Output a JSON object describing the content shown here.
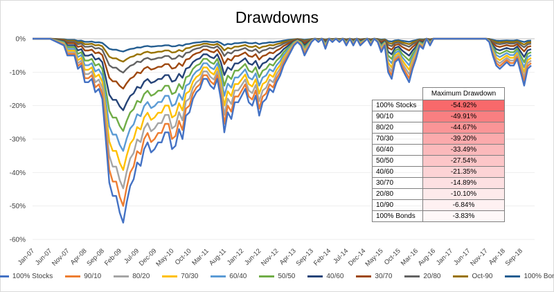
{
  "chart_data": {
    "type": "line",
    "title": "Drawdowns",
    "xlabel": "",
    "ylabel": "",
    "ylim": [
      -60,
      0
    ],
    "y_ticks": [
      "0%",
      "-10%",
      "-20%",
      "-30%",
      "-40%",
      "-50%",
      "-60%"
    ],
    "x_tick_labels": [
      "Jan-07",
      "Jun-07",
      "Nov-07",
      "Apr-08",
      "Sep-08",
      "Feb-09",
      "Jul-09",
      "Dec-09",
      "May-10",
      "Oct-10",
      "Mar-11",
      "Aug-11",
      "Jan-12",
      "Jun-12",
      "Nov-12",
      "Apr-13",
      "Sep-13",
      "Feb-14",
      "Jul-14",
      "Dec-14",
      "May-15",
      "Oct-15",
      "Mar-16",
      "Aug-16",
      "Jan-17",
      "Jun-17",
      "Nov-17",
      "Apr-18",
      "Sep-18"
    ],
    "x_tick_months": [
      0,
      5,
      10,
      15,
      20,
      25,
      30,
      35,
      40,
      45,
      50,
      55,
      60,
      65,
      70,
      75,
      80,
      85,
      90,
      95,
      100,
      105,
      110,
      115,
      120,
      125,
      130,
      135,
      140
    ],
    "x_range_months": [
      0,
      144
    ],
    "stock_drawdown_anchors": [
      [
        0,
        0
      ],
      [
        5,
        0
      ],
      [
        9,
        -2
      ],
      [
        10,
        -5
      ],
      [
        12,
        -5
      ],
      [
        13,
        -9
      ],
      [
        14,
        -8
      ],
      [
        15,
        -13
      ],
      [
        16,
        -13
      ],
      [
        17,
        -12
      ],
      [
        18,
        -16
      ],
      [
        19,
        -15
      ],
      [
        20,
        -18
      ],
      [
        21,
        -30
      ],
      [
        22,
        -43
      ],
      [
        23,
        -47
      ],
      [
        24,
        -47
      ],
      [
        25,
        -52
      ],
      [
        26,
        -55
      ],
      [
        27,
        -49
      ],
      [
        28,
        -44
      ],
      [
        29,
        -42
      ],
      [
        30,
        -37
      ],
      [
        31,
        -38
      ],
      [
        32,
        -33
      ],
      [
        33,
        -31
      ],
      [
        34,
        -34
      ],
      [
        35,
        -33
      ],
      [
        36,
        -31
      ],
      [
        37,
        -31
      ],
      [
        38,
        -28
      ],
      [
        39,
        -28
      ],
      [
        40,
        -33
      ],
      [
        41,
        -32
      ],
      [
        42,
        -27
      ],
      [
        43,
        -30
      ],
      [
        44,
        -23
      ],
      [
        45,
        -22
      ],
      [
        46,
        -18
      ],
      [
        47,
        -16
      ],
      [
        48,
        -15
      ],
      [
        49,
        -12
      ],
      [
        50,
        -12
      ],
      [
        51,
        -14
      ],
      [
        52,
        -15
      ],
      [
        53,
        -12
      ],
      [
        54,
        -18
      ],
      [
        55,
        -28
      ],
      [
        56,
        -22
      ],
      [
        57,
        -24
      ],
      [
        58,
        -19
      ],
      [
        59,
        -19
      ],
      [
        60,
        -17
      ],
      [
        61,
        -15
      ],
      [
        62,
        -19
      ],
      [
        63,
        -20
      ],
      [
        64,
        -17
      ],
      [
        65,
        -23
      ],
      [
        66,
        -19
      ],
      [
        67,
        -18
      ],
      [
        68,
        -15
      ],
      [
        69,
        -16
      ],
      [
        70,
        -13
      ],
      [
        71,
        -11
      ],
      [
        72,
        -8
      ],
      [
        73,
        -6
      ],
      [
        74,
        -4
      ],
      [
        75,
        -2
      ],
      [
        76,
        -1
      ],
      [
        77,
        -2
      ],
      [
        78,
        -5
      ],
      [
        79,
        -3
      ],
      [
        80,
        -1
      ],
      [
        81,
        0
      ],
      [
        82,
        -1
      ],
      [
        83,
        0
      ],
      [
        84,
        -3
      ],
      [
        85,
        0
      ],
      [
        86,
        -1
      ],
      [
        87,
        0
      ],
      [
        88,
        -1
      ],
      [
        89,
        0
      ],
      [
        90,
        -2
      ],
      [
        91,
        0
      ],
      [
        92,
        -2
      ],
      [
        93,
        0
      ],
      [
        94,
        -2
      ],
      [
        95,
        -1
      ],
      [
        96,
        0
      ],
      [
        97,
        -2
      ],
      [
        98,
        0
      ],
      [
        99,
        -1
      ],
      [
        100,
        -4
      ],
      [
        101,
        -2
      ],
      [
        102,
        -10
      ],
      [
        103,
        -12
      ],
      [
        104,
        -7
      ],
      [
        105,
        -6
      ],
      [
        106,
        -9
      ],
      [
        107,
        -11
      ],
      [
        108,
        -13
      ],
      [
        109,
        -9
      ],
      [
        110,
        -6
      ],
      [
        111,
        -2
      ],
      [
        112,
        -3
      ],
      [
        113,
        0
      ],
      [
        114,
        -2
      ],
      [
        115,
        0
      ],
      [
        116,
        0
      ],
      [
        117,
        0
      ],
      [
        118,
        0
      ],
      [
        119,
        0
      ],
      [
        120,
        0
      ],
      [
        121,
        0
      ],
      [
        122,
        0
      ],
      [
        123,
        0
      ],
      [
        124,
        0
      ],
      [
        125,
        0
      ],
      [
        126,
        0
      ],
      [
        127,
        0
      ],
      [
        128,
        0
      ],
      [
        129,
        0
      ],
      [
        130,
        0
      ],
      [
        131,
        -1
      ],
      [
        132,
        -5
      ],
      [
        133,
        -8
      ],
      [
        134,
        -9
      ],
      [
        135,
        -8
      ],
      [
        136,
        -7
      ],
      [
        137,
        -8
      ],
      [
        138,
        -8
      ],
      [
        139,
        -6
      ],
      [
        140,
        -10
      ],
      [
        141,
        -14
      ],
      [
        142,
        -9
      ],
      [
        143,
        -8
      ]
    ],
    "series": [
      {
        "name": "100% Stocks",
        "max_drawdown": -54.92,
        "color": "#4472c4"
      },
      {
        "name": "90/10",
        "max_drawdown": -49.91,
        "color": "#ed7d31"
      },
      {
        "name": "80/20",
        "max_drawdown": -44.67,
        "color": "#a5a5a5"
      },
      {
        "name": "70/30",
        "max_drawdown": -39.2,
        "color": "#ffc000"
      },
      {
        "name": "60/40",
        "max_drawdown": -33.49,
        "color": "#5b9bd5"
      },
      {
        "name": "50/50",
        "max_drawdown": -27.54,
        "color": "#70ad47"
      },
      {
        "name": "40/60",
        "max_drawdown": -21.35,
        "color": "#264478"
      },
      {
        "name": "30/70",
        "max_drawdown": -14.89,
        "color": "#9e480e"
      },
      {
        "name": "20/80",
        "max_drawdown": -10.1,
        "color": "#636363"
      },
      {
        "name": "Oct-90",
        "max_drawdown": -6.84,
        "color": "#997300"
      },
      {
        "name": "100% Bonds",
        "max_drawdown": -3.83,
        "color": "#255e91"
      }
    ]
  },
  "table": {
    "header": "Maximum Drawdown",
    "rows": [
      {
        "label": "100% Stocks",
        "value": "-54.92%",
        "bg": "#f8696b"
      },
      {
        "label": "90/10",
        "value": "-49.91%",
        "bg": "#f97f81"
      },
      {
        "label": "80/20",
        "value": "-44.67%",
        "bg": "#fa9597"
      },
      {
        "label": "70/30",
        "value": "-39.20%",
        "bg": "#fbaaac"
      },
      {
        "label": "60/40",
        "value": "-33.49%",
        "bg": "#fbb9bb"
      },
      {
        "label": "50/50",
        "value": "-27.54%",
        "bg": "#fcc6c8"
      },
      {
        "label": "40/60",
        "value": "-21.35%",
        "bg": "#fcd3d5"
      },
      {
        "label": "30/70",
        "value": "-14.89%",
        "bg": "#fde0e2"
      },
      {
        "label": "20/80",
        "value": "-10.10%",
        "bg": "#fdeaeb"
      },
      {
        "label": "10/90",
        "value": "-6.84%",
        "bg": "#fef1f2"
      },
      {
        "label": "100% Bonds",
        "value": "-3.83%",
        "bg": "#fef8f8"
      }
    ]
  }
}
